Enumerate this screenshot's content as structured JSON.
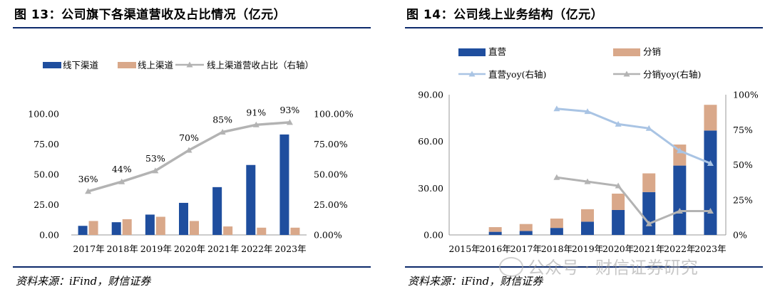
{
  "figures": [
    {
      "title": "图 13：公司旗下各渠道营收及占比情况（亿元）",
      "source": "资料来源：iFind，财信证券"
    },
    {
      "title": "图 14：公司线上业务结构（亿元）",
      "source": "资料来源：iFind，财信证券"
    }
  ],
  "watermark": "公众号 · 财信证券研究",
  "colors": {
    "blue": "#1f4e9e",
    "tan": "#d9a88a",
    "gray_line": "#b3b3b3",
    "light_blue_line": "#a9c4e4",
    "rule": "#0c2a6b"
  },
  "chart_data": [
    {
      "type": "bar",
      "categories": [
        "2017年",
        "2018年",
        "2019年",
        "2020年",
        "2021年",
        "2022年",
        "2023年"
      ],
      "series": [
        {
          "name": "线下渠道",
          "kind": "bar",
          "values": [
            7.5,
            10.5,
            16.8,
            26.5,
            39.5,
            57.8,
            83.0
          ]
        },
        {
          "name": "线上渠道",
          "kind": "bar",
          "values": [
            11.5,
            13.0,
            15.0,
            11.5,
            7.0,
            6.0,
            6.0
          ]
        },
        {
          "name": "线上渠道营收占比（右轴）",
          "kind": "line",
          "axis": "right",
          "values": [
            36,
            44,
            53,
            70,
            85,
            91,
            93
          ]
        }
      ],
      "point_labels": [
        "36%",
        "44%",
        "53%",
        "70%",
        "85%",
        "91%",
        "93%"
      ],
      "ylim": [
        0,
        100
      ],
      "yticks": [
        "0.00",
        "25.00",
        "50.00",
        "75.00",
        "100.00"
      ],
      "y2lim": [
        0,
        100
      ],
      "y2ticks": [
        "0.00%",
        "25.00%",
        "50.00%",
        "75.00%",
        "100.00%"
      ],
      "legend": [
        "线下渠道",
        "线上渠道",
        "线上渠道营收占比（右轴）"
      ],
      "legend_position": "top"
    },
    {
      "type": "bar",
      "stacked": true,
      "categories": [
        "2015年",
        "2016年",
        "2017年",
        "2018年",
        "2019年",
        "2020年",
        "2021年",
        "2022年",
        "2023年"
      ],
      "series": [
        {
          "name": "直营",
          "kind": "bar",
          "values": [
            0,
            2.0,
            2.5,
            4.5,
            8.5,
            16.0,
            27.5,
            44.5,
            67.0
          ]
        },
        {
          "name": "分销",
          "kind": "bar",
          "values": [
            0,
            3.0,
            4.5,
            6.0,
            8.0,
            10.5,
            12.0,
            13.5,
            16.5
          ]
        },
        {
          "name": "直营yoy(右轴)",
          "kind": "line",
          "axis": "right",
          "values": [
            null,
            null,
            null,
            90,
            88,
            79,
            76,
            60,
            51
          ]
        },
        {
          "name": "分销yoy(右轴)",
          "kind": "line",
          "axis": "right",
          "values": [
            null,
            null,
            null,
            41,
            38,
            35,
            8,
            17,
            17
          ]
        }
      ],
      "ylim": [
        0,
        90
      ],
      "yticks": [
        "0.00",
        "30.00",
        "60.00",
        "90.00"
      ],
      "y2lim": [
        0,
        100
      ],
      "y2ticks": [
        "0%",
        "25%",
        "50%",
        "75%",
        "100%"
      ],
      "legend": [
        "直营",
        "分销",
        "直营yoy(右轴)",
        "分销yoy(右轴)"
      ],
      "legend_position": "top"
    }
  ]
}
